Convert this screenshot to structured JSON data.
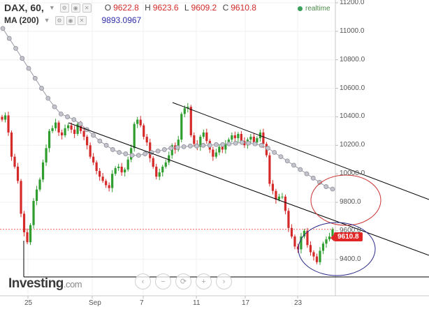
{
  "header": {
    "symbol": "DAX, 60,",
    "open_label": "O",
    "open_value": "9622.8",
    "high_label": "H",
    "high_value": "9623.6",
    "low_label": "L",
    "low_value": "9609.2",
    "close_label": "C",
    "close_value": "9610.8",
    "ma_label": "MA (200)",
    "ma_value": "9893.0967",
    "realtime_label": "realtime"
  },
  "branding": {
    "logo_text": "Investing",
    "logo_suffix": ".com"
  },
  "last_price_tag": "9610.8",
  "nav_buttons": [
    "‹",
    "−",
    "⟳",
    "+",
    "›"
  ],
  "colors": {
    "up": "#2f9e2f",
    "down": "#d42a2a",
    "ma": "#9a9aa6",
    "trendline": "#000000",
    "circle_red": "#cc3333",
    "circle_blue": "#2a2a88",
    "last_price": "#e12626",
    "realtime": "#3aa05a"
  },
  "chart_data": {
    "type": "line",
    "subtype": "candlestick",
    "instrument": "DAX",
    "interval": "60",
    "ylim": [
      9340,
      11200
    ],
    "y_ticks": [
      "11200.0",
      "11000.0",
      "10800.0",
      "10600.0",
      "10400.0",
      "10200.0",
      "10000.0",
      "9800.0",
      "9600.0",
      "9400.0"
    ],
    "x_ticks": [
      "25",
      "Sep",
      "7",
      "11",
      "17",
      "23"
    ],
    "last_price": 9610.8,
    "grid": true,
    "series": [
      {
        "name": "DAX",
        "values": [
          10380,
          10410,
          10290,
          10120,
          10050,
          9950,
          9720,
          9590,
          9520,
          9640,
          9810,
          9890,
          9960,
          10080,
          10180,
          10300,
          10320,
          10360,
          10290,
          10270,
          10320,
          10340,
          10310,
          10280,
          10350,
          10300,
          10260,
          10200,
          10120,
          10080,
          10020,
          9980,
          9950,
          9920,
          9900,
          10000,
          10040,
          10050,
          10010,
          10030,
          10100,
          10180,
          10350,
          10380,
          10340,
          10260,
          10220,
          10110,
          10050,
          9980,
          10010,
          10050,
          10080,
          10130,
          10200,
          10170,
          10240,
          10420,
          10460,
          10470,
          10270,
          10210,
          10190,
          10260,
          10290,
          10230,
          10170,
          10120,
          10150,
          10190,
          10170,
          10210,
          10240,
          10270,
          10250,
          10280,
          10230,
          10200,
          10240,
          10260,
          10220,
          10250,
          10290,
          10210,
          10130,
          9930,
          9880,
          9820,
          9840,
          9840,
          9740,
          9620,
          9560,
          9490,
          9470,
          9560,
          9600,
          9500,
          9450,
          9420,
          9380,
          9460,
          9510,
          9540,
          9560,
          9610
        ]
      },
      {
        "name": "MA (200)",
        "values": [
          11020,
          10950,
          10880,
          10810,
          10740,
          10670,
          10600,
          10530,
          10470,
          10420,
          10400,
          10380,
          10350,
          10310,
          10270,
          10230,
          10200,
          10170,
          10150,
          10140,
          10130,
          10130,
          10140,
          10150,
          10160,
          10170,
          10180,
          10185,
          10190,
          10195,
          10195,
          10200,
          10200,
          10205,
          10205,
          10210,
          10215,
          10220,
          10215,
          10210,
          10200,
          10180,
          10150,
          10120,
          10090,
          10060,
          10030,
          10000,
          9970,
          9940,
          9910,
          9893
        ]
      }
    ],
    "trendlines": [
      {
        "from": [
          "Aug 28",
          10400
        ],
        "to": [
          "Sep 26",
          9400
        ]
      },
      {
        "from": [
          "Sep 9",
          10530
        ],
        "to": [
          "Sep 26",
          9840
        ]
      },
      {
        "from": [
          "Aug 24",
          9340
        ],
        "to": [
          "Sep 26",
          9340
        ]
      }
    ],
    "annotations": [
      {
        "shape": "ellipse",
        "color": "red",
        "center": [
          "Sep 24",
          9870
        ]
      },
      {
        "shape": "ellipse",
        "color": "blue",
        "center": [
          "Sep 24",
          9460
        ]
      }
    ]
  }
}
